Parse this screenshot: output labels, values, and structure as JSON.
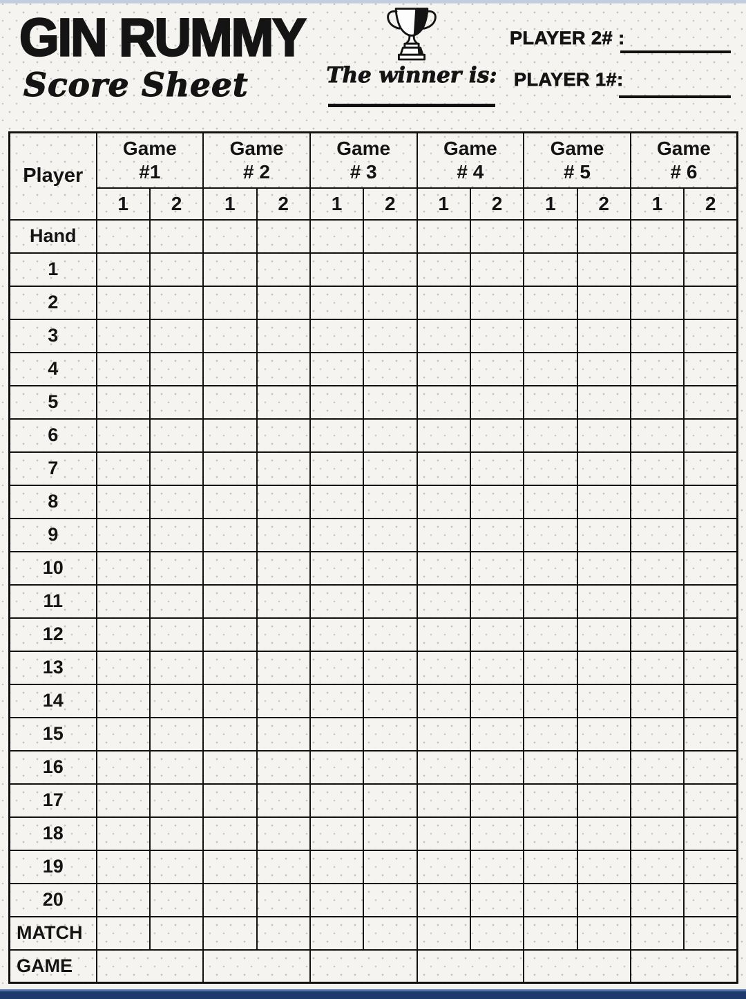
{
  "header": {
    "title": "GIN RUMMY",
    "subtitle": "Score Sheet",
    "winner_label": "The winner is:",
    "winner_value": "",
    "player2_label": "PLAYER 2# :",
    "player2_value": "",
    "player1_label": "PLAYER 1#:",
    "player1_value": ""
  },
  "icons": {
    "trophy": "trophy-icon"
  },
  "table": {
    "player_header": "Player",
    "games": [
      {
        "label_line1": "Game",
        "label_line2": "#1"
      },
      {
        "label_line1": "Game",
        "label_line2": "# 2"
      },
      {
        "label_line1": "Game",
        "label_line2": "# 3"
      },
      {
        "label_line1": "Game",
        "label_line2": "# 4"
      },
      {
        "label_line1": "Game",
        "label_line2": "# 5"
      },
      {
        "label_line1": "Game",
        "label_line2": "# 6"
      }
    ],
    "sub_columns": [
      "1",
      "2"
    ],
    "row_labels": [
      "Hand",
      "1",
      "2",
      "3",
      "4",
      "5",
      "6",
      "7",
      "8",
      "9",
      "10",
      "11",
      "12",
      "13",
      "14",
      "15",
      "16",
      "17",
      "18",
      "19",
      "20",
      "MATCH"
    ],
    "game_total_label": "GAME",
    "cell_values": ""
  },
  "colors": {
    "background": "#f5f4f1",
    "dot": "#c6c4bf",
    "ink": "#111111",
    "top_strip": "#c2cedf",
    "bottom_bar": "#1e3a6d",
    "bottom_bar_line": "#4f6fae"
  }
}
